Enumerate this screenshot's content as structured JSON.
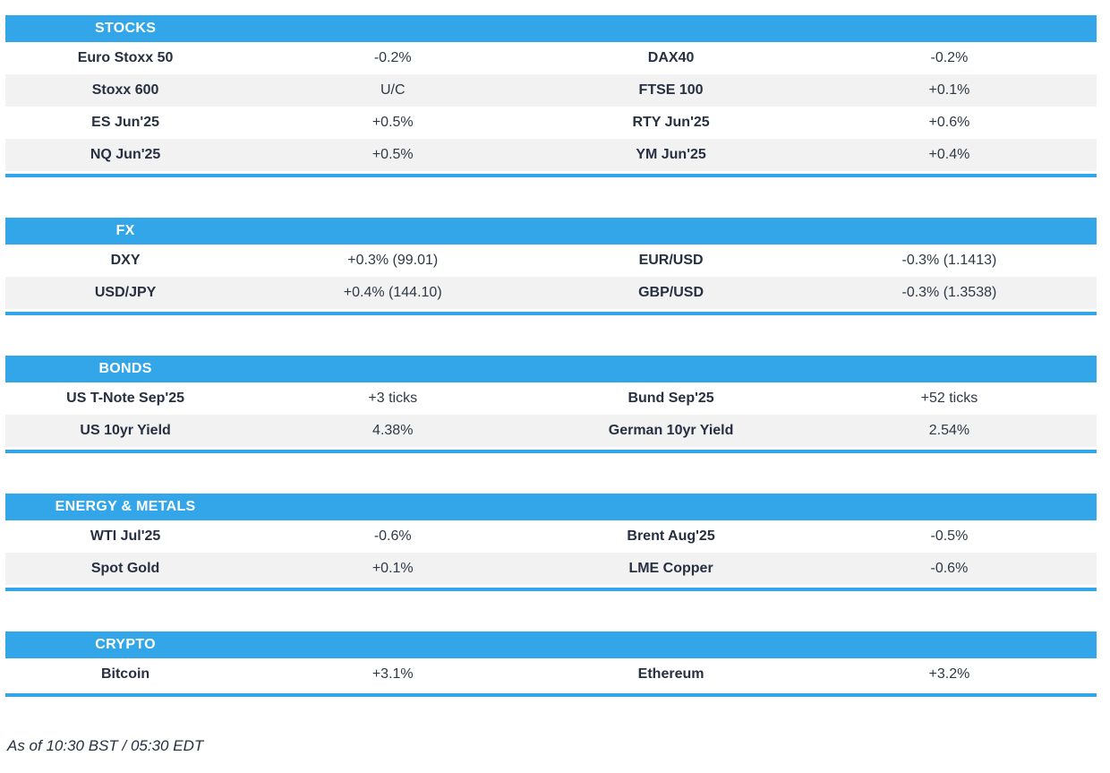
{
  "colors": {
    "accent": "#33a6ea",
    "row_alt": "#f2f2f3",
    "header_text": "#ffffff",
    "label_text": "#273040",
    "value_text": "#2f3845"
  },
  "footer": {
    "as_of": "As of 10:30 BST / 05:30 EDT"
  },
  "sections": [
    {
      "title": "STOCKS",
      "rows": [
        {
          "left": {
            "name": "Euro Stoxx 50",
            "change": "-0.2%"
          },
          "right": {
            "name": "DAX40",
            "change": "-0.2%"
          }
        },
        {
          "left": {
            "name": "Stoxx 600",
            "change": "U/C"
          },
          "right": {
            "name": "FTSE 100",
            "change": "+0.1%"
          }
        },
        {
          "left": {
            "name": "ES Jun'25",
            "change": "+0.5%"
          },
          "right": {
            "name": "RTY Jun'25",
            "change": "+0.6%"
          }
        },
        {
          "left": {
            "name": "NQ Jun'25",
            "change": "+0.5%"
          },
          "right": {
            "name": "YM Jun'25",
            "change": "+0.4%"
          }
        }
      ]
    },
    {
      "title": "FX",
      "rows": [
        {
          "left": {
            "name": "DXY",
            "change": "+0.3% (99.01)"
          },
          "right": {
            "name": "EUR/USD",
            "change": "-0.3% (1.1413)"
          }
        },
        {
          "left": {
            "name": "USD/JPY",
            "change": "+0.4% (144.10)"
          },
          "right": {
            "name": "GBP/USD",
            "change": "-0.3% (1.3538)"
          }
        }
      ]
    },
    {
      "title": "BONDS",
      "rows": [
        {
          "left": {
            "name": "US T-Note Sep'25",
            "change": "+3 ticks"
          },
          "right": {
            "name": "Bund Sep'25",
            "change": "+52 ticks"
          }
        },
        {
          "left": {
            "name": "US 10yr Yield",
            "change": "4.38%"
          },
          "right": {
            "name": "German 10yr Yield",
            "change": "2.54%"
          }
        }
      ]
    },
    {
      "title": "ENERGY & METALS",
      "rows": [
        {
          "left": {
            "name": "WTI Jul'25",
            "change": "-0.6%"
          },
          "right": {
            "name": "Brent Aug'25",
            "change": "-0.5%"
          }
        },
        {
          "left": {
            "name": "Spot Gold",
            "change": "+0.1%"
          },
          "right": {
            "name": "LME Copper",
            "change": "-0.6%"
          }
        }
      ]
    },
    {
      "title": "CRYPTO",
      "rows": [
        {
          "left": {
            "name": "Bitcoin",
            "change": "+3.1%"
          },
          "right": {
            "name": "Ethereum",
            "change": "+3.2%"
          }
        }
      ]
    }
  ]
}
